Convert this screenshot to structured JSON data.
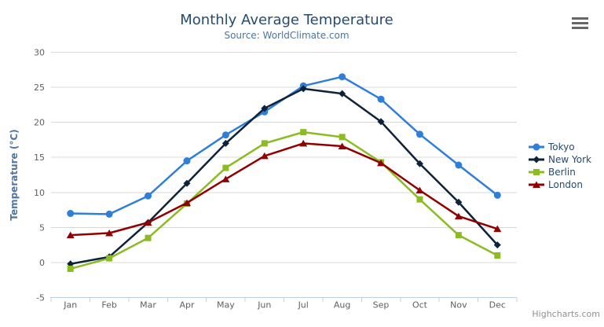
{
  "chart": {
    "title": "Monthly Average Temperature",
    "subtitle": "Source: WorldClimate.com",
    "credits": "Highcharts.com",
    "context_menu_icon": "hamburger-menu-icon"
  },
  "chart_data": {
    "type": "line",
    "title": "Monthly Average Temperature",
    "subtitle": "Source: WorldClimate.com",
    "categories": [
      "Jan",
      "Feb",
      "Mar",
      "Apr",
      "May",
      "Jun",
      "Jul",
      "Aug",
      "Sep",
      "Oct",
      "Nov",
      "Dec"
    ],
    "xlabel": "",
    "ylabel": "Temperature (°C)",
    "ylim": [
      -5,
      30
    ],
    "yticks": [
      -5,
      0,
      5,
      10,
      15,
      20,
      25,
      30
    ],
    "grid": true,
    "legend_position": "right",
    "colors": {
      "grid_line": "#d8d8d8",
      "axis_line": "#c0d0e0",
      "axis_label": "#606060",
      "title": "#274b6d",
      "subtitle": "#4d759e",
      "legend_text": "#274b6d",
      "credit_text": "#909090"
    },
    "series": [
      {
        "name": "Tokyo",
        "color": "#2f7ed8",
        "marker": "circle",
        "values": [
          7.0,
          6.9,
          9.5,
          14.5,
          18.2,
          21.5,
          25.2,
          26.5,
          23.3,
          18.3,
          13.9,
          9.6
        ]
      },
      {
        "name": "New York",
        "color": "#0d233a",
        "marker": "diamond",
        "values": [
          -0.2,
          0.8,
          5.7,
          11.3,
          17.0,
          22.0,
          24.8,
          24.1,
          20.1,
          14.1,
          8.6,
          2.5
        ]
      },
      {
        "name": "Berlin",
        "color": "#8bbc21",
        "marker": "square",
        "values": [
          -0.9,
          0.6,
          3.5,
          8.4,
          13.5,
          17.0,
          18.6,
          17.9,
          14.3,
          9.0,
          3.9,
          1.0
        ]
      },
      {
        "name": "London",
        "color": "#910000",
        "marker": "triangle",
        "values": [
          3.9,
          4.2,
          5.7,
          8.5,
          11.9,
          15.2,
          17.0,
          16.6,
          14.2,
          10.3,
          6.6,
          4.8
        ]
      }
    ]
  }
}
